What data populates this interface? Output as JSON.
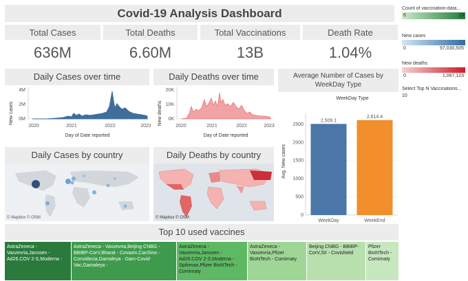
{
  "dashboard": {
    "title": "Covid-19 Analysis Dashboard"
  },
  "kpis": [
    {
      "label": "Total Cases",
      "value": "636M"
    },
    {
      "label": "Total Deaths",
      "value": "6.60M"
    },
    {
      "label": "Total Vaccinations",
      "value": "13B"
    },
    {
      "label": "Death Rate",
      "value": "1.04%"
    }
  ],
  "legends": {
    "vaccination": {
      "title": "Count of vaccination-data...",
      "min": "6",
      "max": "13",
      "color_low": "#cfe9c8",
      "color_high": "#1e7b3a"
    },
    "cases": {
      "title": "New cases",
      "min": "0",
      "max": "97,030,505",
      "color_low": "#d5e6f3",
      "color_high": "#2f6da3"
    },
    "deaths": {
      "title": "New deaths",
      "min": "0",
      "max": "1,067,123",
      "color_low": "#f7d0d0",
      "color_high": "#c81e2a"
    },
    "topn": {
      "label": "Select Top N Vaccinations...",
      "value": "10"
    }
  },
  "daily_cases": {
    "title": "Daily Cases over time",
    "ylabel": "New cases",
    "xlabel": "Day of Date reported",
    "y_ticks": [
      "4M",
      "2M",
      "0M"
    ],
    "x_ticks": [
      "2020",
      "2021",
      "2022",
      "2023"
    ],
    "color": "#3f6e9c"
  },
  "daily_deaths": {
    "title": "Daily Deaths over time",
    "ylabel": "New deaths",
    "xlabel": "Day of Date reported",
    "y_ticks": [
      "20K",
      "10K",
      "0K"
    ],
    "x_ticks": [
      "2020",
      "2021",
      "2022",
      "2023"
    ],
    "color": "#e8777a"
  },
  "weekday": {
    "title": "Average Number of Cases by WeekDay Type",
    "legend_title": "WeekDay Type",
    "ylabel": "Avg. New cases",
    "value_labels": [
      "2,509.1",
      "2,614.4"
    ],
    "y_ticks": [
      "2500",
      "2000",
      "1500",
      "1000",
      "500",
      "0"
    ]
  },
  "maps": {
    "cases_title": "Daily Cases by country",
    "deaths_title": "Daily Deaths  by country",
    "credit": "© Mapbox © OSM"
  },
  "vaccines": {
    "title": "Top 10 used vaccines",
    "cells": [
      {
        "text": "AstraZeneca - Vaxzevria,Janssen - Ad26.COV 2-S,Moderna -",
        "bg": "#2a7a3b",
        "fg": "#ffffff"
      },
      {
        "text": "AstraZeneca - Vaxzevria,Beijing CNBG - BBIBP-CorV,Bharat - Covaxin,CanSino - Convidecia,Gamaleya - Gam-Covid-Vac,Gamaleya -",
        "bg": "#3e9a4c",
        "fg": "#ffffff"
      },
      {
        "text": "AstraZeneca - Vaxzevria,Janssen - Ad26.COV 2-S,Moderna - Spikevax,Pfizer BioNTech - Comirnaty",
        "bg": "#5db964",
        "fg": "#1d1d1d"
      },
      {
        "text": "AstraZeneca - Vaxzevria,Pfizer BioNTech - Comirnaty",
        "bg": "#9fd696",
        "fg": "#1d1d1d"
      },
      {
        "text": "Beijing CNBG - BBIBP-CorV,SII - Covishield",
        "bg": "#b8e0ae",
        "fg": "#1d1d1d"
      },
      {
        "text": "Pfizer BioNTech - Comirnaty",
        "bg": "#c7e7bf",
        "fg": "#1d1d1d"
      }
    ]
  },
  "chart_data": [
    {
      "type": "bar",
      "title": "Average Number of Cases by WeekDay Type",
      "categories": [
        "WeekDay",
        "WeekEnd"
      ],
      "values": [
        2509.1,
        2614.4
      ],
      "colors": [
        "#4a76a8",
        "#f28e2b"
      ],
      "xlabel": "",
      "ylabel": "Avg. New cases",
      "ylim": [
        0,
        2800
      ]
    }
  ]
}
